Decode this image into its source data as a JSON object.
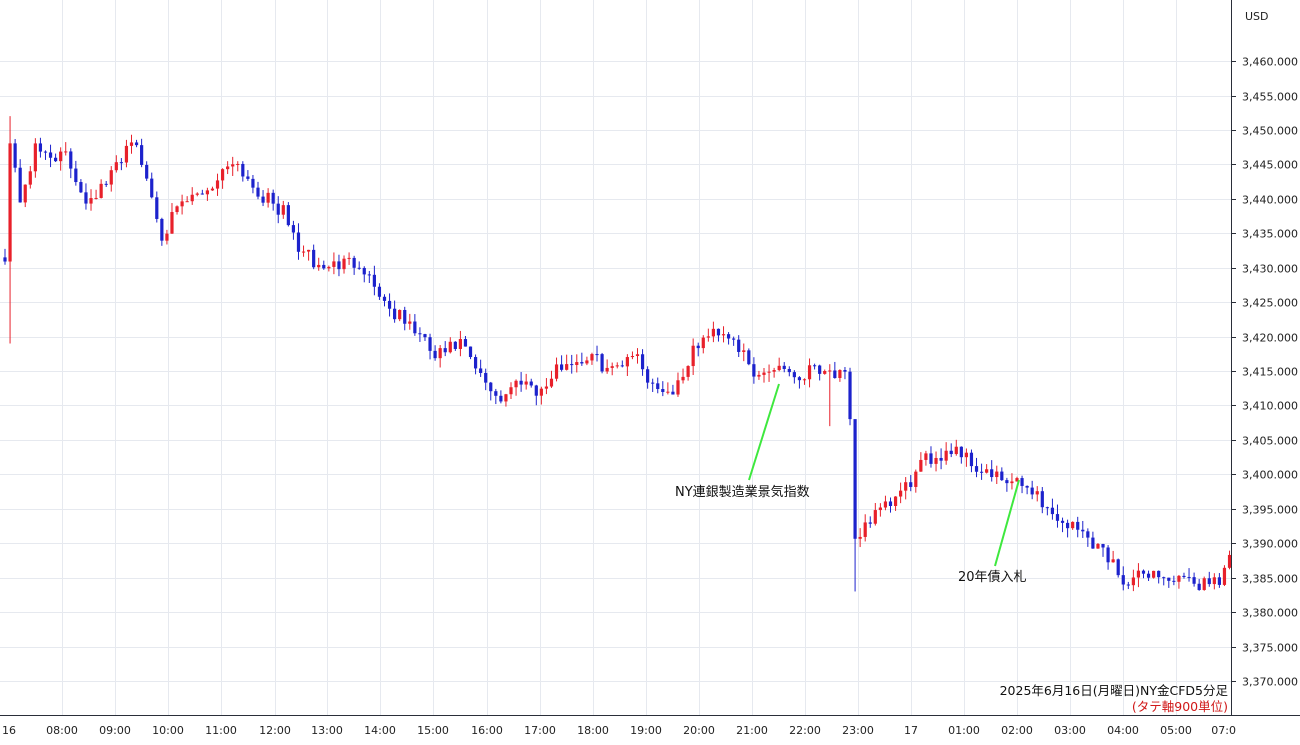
{
  "chart_data": {
    "type": "candlestick",
    "title": "2025年6月16日(月曜日)NY金CFD5分足",
    "subtitle": "(タテ軸900単位)",
    "currency": "USD",
    "y_ticks": [
      3370,
      3375,
      3380,
      3385,
      3390,
      3395,
      3400,
      3405,
      3410,
      3415,
      3420,
      3425,
      3430,
      3435,
      3440,
      3445,
      3450,
      3455,
      3460
    ],
    "y_tick_labels": [
      "3,370.000",
      "3,375.000",
      "3,380.000",
      "3,385.000",
      "3,390.000",
      "3,395.000",
      "3,400.000",
      "3,405.000",
      "3,410.000",
      "3,415.000",
      "3,420.000",
      "3,425.000",
      "3,430.000",
      "3,435.000",
      "3,440.000",
      "3,445.000",
      "3,450.000",
      "3,455.000",
      "3,460.000"
    ],
    "x_labels": [
      "16",
      "08:00",
      "09:00",
      "10:00",
      "11:00",
      "12:00",
      "13:00",
      "14:00",
      "15:00",
      "16:00",
      "17:00",
      "18:00",
      "19:00",
      "20:00",
      "21:00",
      "22:00",
      "23:00",
      "17",
      "01:00",
      "02:00",
      "03:00",
      "04:00",
      "05:00",
      "07:0"
    ],
    "keyframes": [
      [
        0,
        3432
      ],
      [
        1,
        3448
      ],
      [
        3,
        3440
      ],
      [
        6,
        3447
      ],
      [
        12,
        3446
      ],
      [
        16,
        3440
      ],
      [
        20,
        3442
      ],
      [
        25,
        3449
      ],
      [
        28,
        3443
      ],
      [
        31,
        3435
      ],
      [
        35,
        3439
      ],
      [
        41,
        3442
      ],
      [
        45,
        3446
      ],
      [
        50,
        3441
      ],
      [
        55,
        3438
      ],
      [
        58,
        3433
      ],
      [
        62,
        3430
      ],
      [
        70,
        3431
      ],
      [
        76,
        3424
      ],
      [
        81,
        3421
      ],
      [
        85,
        3417
      ],
      [
        90,
        3419
      ],
      [
        94,
        3414
      ],
      [
        98,
        3411
      ],
      [
        102,
        3414
      ],
      [
        106,
        3412
      ],
      [
        110,
        3416
      ],
      [
        116,
        3417
      ],
      [
        120,
        3415
      ],
      [
        124,
        3418
      ],
      [
        128,
        3413
      ],
      [
        132,
        3412
      ],
      [
        137,
        3419
      ],
      [
        141,
        3421
      ],
      [
        144,
        3420
      ],
      [
        148,
        3414
      ],
      [
        153,
        3416
      ],
      [
        157,
        3414
      ],
      [
        160,
        3416
      ],
      [
        163,
        3415
      ],
      [
        166,
        3414
      ],
      [
        167,
        3407
      ],
      [
        168,
        3390
      ],
      [
        170,
        3393
      ],
      [
        174,
        3395
      ],
      [
        178,
        3398
      ],
      [
        182,
        3402
      ],
      [
        188,
        3404
      ],
      [
        192,
        3401
      ],
      [
        197,
        3399
      ],
      [
        203,
        3398
      ],
      [
        207,
        3394
      ],
      [
        212,
        3392
      ],
      [
        217,
        3389
      ],
      [
        222,
        3384
      ],
      [
        226,
        3386
      ],
      [
        229,
        3385
      ],
      [
        235,
        3384
      ],
      [
        240,
        3385
      ],
      [
        242,
        3388
      ]
    ],
    "wick_overrides": [
      {
        "i": 1,
        "high": 3452,
        "low": 3419
      },
      {
        "i": 163,
        "high": 3416,
        "low": 3407
      },
      {
        "i": 168,
        "high": 3393,
        "low": 3383
      }
    ],
    "candle_count": 243,
    "up_color": "#e8202a",
    "down_color": "#1c22cc",
    "annotations": [
      {
        "text": "NY連銀製造業景気指数",
        "x_index": 152,
        "y": 3413
      },
      {
        "text": "20年債入札",
        "x_index": 201,
        "y": 3399
      }
    ]
  }
}
